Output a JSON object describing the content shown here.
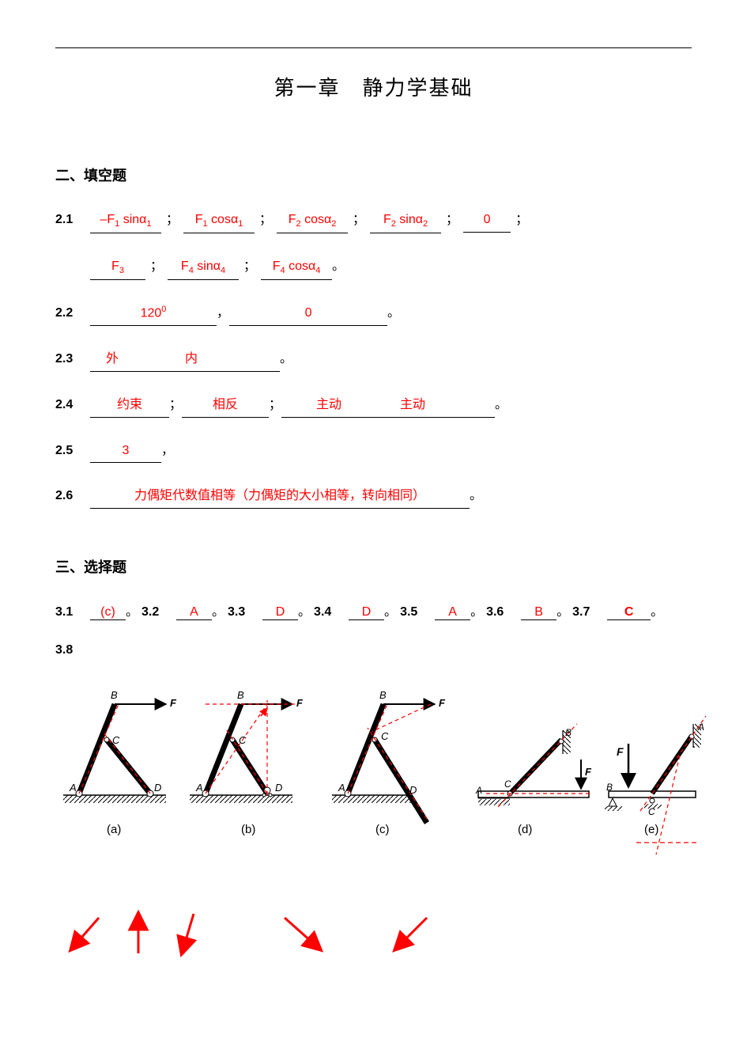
{
  "title": "第一章　静力学基础",
  "section2": {
    "header": "二、填空题",
    "q21": {
      "num": "2.1",
      "blanks_line1": [
        "–F<span class='sub'>1</span> sinα<span class='sub'>1</span>",
        "F<span class='sub'>1</span> cosα<span class='sub'>1</span>",
        "F<span class='sub'>2</span> cosα<span class='sub'>2</span>",
        "F<span class='sub'>2</span> sinα<span class='sub'>2</span>",
        "0"
      ],
      "blanks_line2": [
        "F<span class='sub'>3</span>",
        "F<span class='sub'>4</span> sinα<span class='sub'>4</span>",
        "F<span class='sub'>4</span> cosα<span class='sub'>4</span>"
      ]
    },
    "q22": {
      "num": "2.2",
      "b1": "120<span class='sup'>0</span>",
      "b2": "0"
    },
    "q23": {
      "num": "2.3",
      "b1": "外",
      "b2": "内"
    },
    "q24": {
      "num": "2.4",
      "b1": "约束",
      "b2": "相反",
      "b3": "主动",
      "b4": "主动"
    },
    "q25": {
      "num": "2.5",
      "b1": "3"
    },
    "q26": {
      "num": "2.6",
      "b1": "力偶矩代数值相等（力偶矩的大小相等，转向相同）"
    }
  },
  "section3": {
    "header": "三、选择题",
    "items": [
      {
        "num": "3.1",
        "ans": "(c)"
      },
      {
        "num": "3.2",
        "ans": "A"
      },
      {
        "num": "3.3",
        "ans": "D"
      },
      {
        "num": "3.4",
        "ans": "D"
      },
      {
        "num": "3.5",
        "ans": "A"
      },
      {
        "num": "3.6",
        "ans": "B"
      },
      {
        "num": "3.7",
        "ans": "C"
      }
    ],
    "q38": "3.8",
    "diag_labels": [
      "(a)",
      "(b)",
      "(c)",
      "(d)",
      "(e)"
    ],
    "colors": {
      "red": "#ff0000",
      "black": "#000000",
      "hatch": "#000000"
    }
  }
}
